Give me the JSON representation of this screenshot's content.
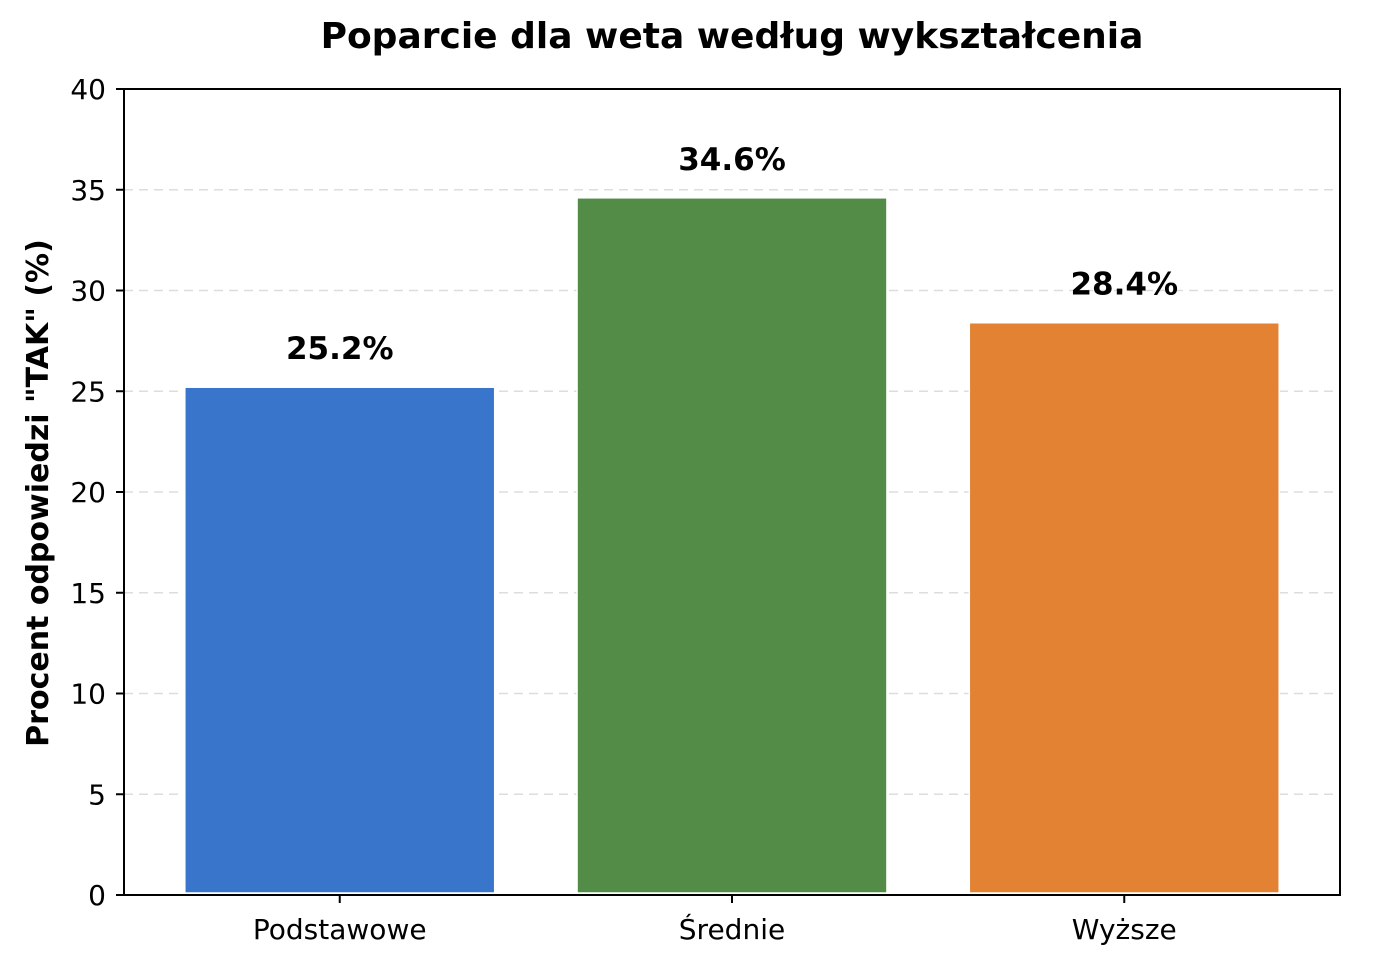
{
  "chart_data": {
    "type": "bar",
    "title": "Poparcie dla weta według wykształcenia",
    "xlabel": "",
    "ylabel": "Procent odpowiedzi \"TAK\" (%)",
    "categories": [
      "Podstawowe",
      "Średnie",
      "Wyższe"
    ],
    "values": [
      25.2,
      34.6,
      28.4
    ],
    "value_labels": [
      "25.2%",
      "34.6%",
      "28.4%"
    ],
    "colors": [
      "#3a75cc",
      "#528c47",
      "#e38233"
    ],
    "ylim": [
      0,
      40
    ],
    "yticks": [
      0,
      5,
      10,
      15,
      20,
      25,
      30,
      35,
      40
    ],
    "ytick_labels": [
      "0",
      "5",
      "10",
      "15",
      "20",
      "25",
      "30",
      "35",
      "40"
    ],
    "grid": "horizontal-dashed",
    "legend": "none"
  }
}
